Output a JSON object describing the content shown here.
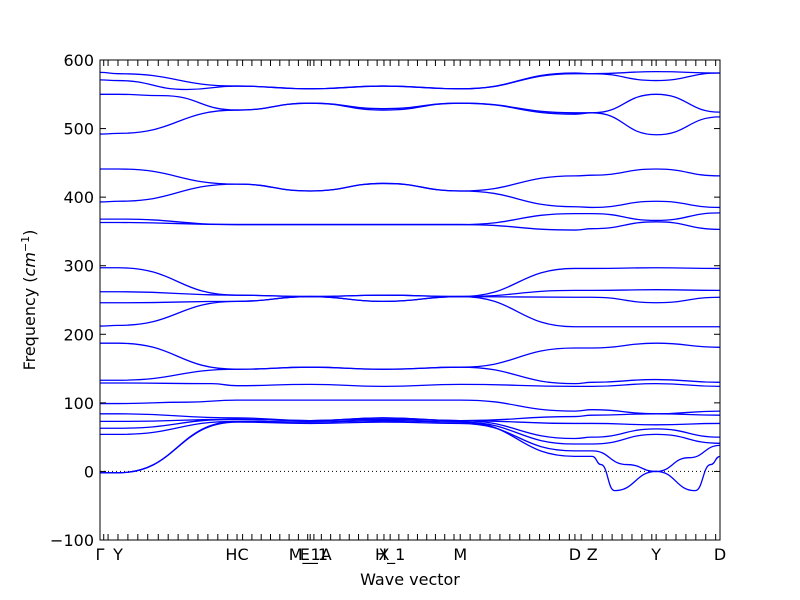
{
  "chart_data": {
    "type": "line",
    "xlabel": "Wave vector",
    "ylabel": "Frequency (cm^{-1})",
    "ylabel_main": "Frequency ",
    "ylabel_unit": "cm",
    "ylabel_exp": "−1",
    "ylim": [
      -100,
      600
    ],
    "yticks": [
      -100,
      0,
      100,
      200,
      300,
      400,
      500,
      600
    ],
    "xlim": [
      0,
      1
    ],
    "grid": false,
    "line_color": "#0000ff",
    "zero_line": {
      "value": 0,
      "style": "dotted",
      "color": "#000000"
    },
    "high_symmetry_points": [
      {
        "label": "Γ",
        "x": 0.0
      },
      {
        "label": "Y",
        "x": 0.029
      },
      {
        "label": "HC",
        "x": 0.221
      },
      {
        "label": "E_1",
        "x": 0.345
      },
      {
        "label": "M_1A",
        "x": 0.339
      },
      {
        "label": "X",
        "x": 0.458
      },
      {
        "label": "H_1",
        "x": 0.468
      },
      {
        "label": "M",
        "x": 0.581
      },
      {
        "label": "D",
        "x": 0.766
      },
      {
        "label": "Z",
        "x": 0.794
      },
      {
        "label": "Y",
        "x": 0.897
      },
      {
        "label": "D",
        "x": 1.0
      }
    ],
    "tick_positions": [
      0.0,
      0.006,
      0.013,
      0.029,
      0.045,
      0.061,
      0.077,
      0.094,
      0.11,
      0.126,
      0.142,
      0.158,
      0.174,
      0.19,
      0.206,
      0.221,
      0.23,
      0.245,
      0.26,
      0.275,
      0.29,
      0.305,
      0.32,
      0.335,
      0.339,
      0.345,
      0.357,
      0.372,
      0.387,
      0.402,
      0.417,
      0.432,
      0.447,
      0.458,
      0.468,
      0.482,
      0.497,
      0.512,
      0.527,
      0.541,
      0.556,
      0.571,
      0.581,
      0.597,
      0.613,
      0.629,
      0.645,
      0.661,
      0.677,
      0.693,
      0.709,
      0.725,
      0.741,
      0.757,
      0.766,
      0.776,
      0.794,
      0.81,
      0.826,
      0.842,
      0.858,
      0.874,
      0.89,
      0.897,
      0.913,
      0.929,
      0.945,
      0.961,
      0.977,
      0.993,
      1.0
    ],
    "series": [
      {
        "x": [
          0,
          0.029,
          0.221,
          0.339,
          0.458,
          0.581,
          0.766,
          0.794,
          0.897,
          1.0
        ],
        "values": [
          582,
          580,
          562,
          558,
          562,
          558,
          581,
          580,
          583,
          581
        ]
      },
      {
        "x": [
          0,
          0.029,
          0.14,
          0.221,
          0.339,
          0.458,
          0.581,
          0.766,
          0.794,
          0.897,
          1.0
        ],
        "values": [
          571,
          570,
          557,
          562,
          558,
          562,
          558,
          580,
          580,
          570,
          581
        ]
      },
      {
        "x": [
          0,
          0.029,
          0.1,
          0.221,
          0.339,
          0.458,
          0.581,
          0.766,
          0.794,
          0.897,
          1.0
        ],
        "values": [
          550,
          550,
          548,
          527,
          537,
          527,
          537,
          523,
          523,
          550,
          524
        ]
      },
      {
        "x": [
          0,
          0.029,
          0.221,
          0.339,
          0.458,
          0.581,
          0.766,
          0.794,
          0.897,
          1.0
        ],
        "values": [
          492,
          493,
          527,
          537,
          529,
          537,
          521,
          523,
          491,
          517
        ]
      },
      {
        "x": [
          0,
          0.029,
          0.221,
          0.339,
          0.458,
          0.581,
          0.766,
          0.794,
          0.897,
          1.0
        ],
        "values": [
          441,
          441,
          419,
          409,
          420,
          409,
          431,
          432,
          441,
          431
        ]
      },
      {
        "x": [
          0,
          0.029,
          0.221,
          0.339,
          0.458,
          0.581,
          0.766,
          0.794,
          0.897,
          1.0
        ],
        "values": [
          393,
          394,
          419,
          409,
          420,
          409,
          386,
          385,
          394,
          385
        ]
      },
      {
        "x": [
          0,
          0.029,
          0.221,
          0.339,
          0.458,
          0.581,
          0.766,
          0.794,
          0.897,
          1.0
        ],
        "values": [
          368,
          368,
          360,
          360,
          360,
          360,
          376,
          376,
          366,
          377
        ]
      },
      {
        "x": [
          0,
          0.029,
          0.221,
          0.339,
          0.458,
          0.581,
          0.766,
          0.794,
          0.897,
          1.0
        ],
        "values": [
          363,
          363,
          360,
          360,
          360,
          360,
          352,
          354,
          364,
          353
        ]
      },
      {
        "x": [
          0,
          0.029,
          0.221,
          0.339,
          0.458,
          0.581,
          0.766,
          0.794,
          0.897,
          1.0
        ],
        "values": [
          297,
          297,
          257,
          255,
          257,
          255,
          296,
          296,
          297,
          296
        ]
      },
      {
        "x": [
          0,
          0.029,
          0.221,
          0.339,
          0.458,
          0.581,
          0.766,
          0.794,
          0.897,
          1.0
        ],
        "values": [
          262,
          262,
          257,
          255,
          257,
          255,
          264,
          264,
          265,
          264
        ]
      },
      {
        "x": [
          0,
          0.029,
          0.221,
          0.339,
          0.458,
          0.581,
          0.766,
          0.794,
          0.897,
          1.0
        ],
        "values": [
          246,
          246,
          248,
          255,
          248,
          255,
          254,
          254,
          246,
          254
        ]
      },
      {
        "x": [
          0,
          0.029,
          0.221,
          0.339,
          0.458,
          0.581,
          0.766,
          0.794,
          0.897,
          1.0
        ],
        "values": [
          212,
          213,
          248,
          255,
          248,
          255,
          211,
          211,
          211,
          211
        ]
      },
      {
        "x": [
          0,
          0.029,
          0.221,
          0.339,
          0.458,
          0.581,
          0.766,
          0.794,
          0.897,
          1.0
        ],
        "values": [
          187,
          187,
          149,
          152,
          149,
          152,
          180,
          180,
          187,
          181
        ]
      },
      {
        "x": [
          0,
          0.029,
          0.221,
          0.339,
          0.458,
          0.581,
          0.766,
          0.794,
          0.897,
          1.0
        ],
        "values": [
          133,
          133,
          149,
          152,
          149,
          152,
          128,
          130,
          134,
          130
        ]
      },
      {
        "x": [
          0,
          0.029,
          0.18,
          0.221,
          0.339,
          0.458,
          0.581,
          0.766,
          0.794,
          0.897,
          1.0
        ],
        "values": [
          129,
          129,
          128,
          125,
          127,
          124,
          127,
          124,
          124,
          128,
          124
        ]
      },
      {
        "x": [
          0,
          0.029,
          0.14,
          0.221,
          0.339,
          0.458,
          0.581,
          0.766,
          0.794,
          0.897,
          1.0
        ],
        "values": [
          99,
          99,
          101,
          104,
          104,
          104,
          104,
          88,
          90,
          84,
          88
        ]
      },
      {
        "x": [
          0,
          0.029,
          0.221,
          0.339,
          0.458,
          0.581,
          0.766,
          0.794,
          0.897,
          1.0
        ],
        "values": [
          84,
          84,
          78,
          74,
          76,
          74,
          80,
          82,
          84,
          82
        ]
      },
      {
        "x": [
          0,
          0.029,
          0.221,
          0.339,
          0.458,
          0.581,
          0.766,
          0.794,
          0.897,
          1.0
        ],
        "values": [
          73,
          73,
          76,
          74,
          78,
          74,
          70,
          70,
          68,
          70
        ]
      },
      {
        "x": [
          0,
          0.029,
          0.221,
          0.339,
          0.458,
          0.581,
          0.766,
          0.794,
          0.897,
          1.0
        ],
        "values": [
          63,
          63,
          76,
          74,
          78,
          74,
          48,
          50,
          62,
          50
        ]
      },
      {
        "x": [
          0,
          0.029,
          0.221,
          0.339,
          0.458,
          0.581,
          0.766,
          0.794,
          0.897,
          1.0
        ],
        "values": [
          54,
          54,
          73,
          72,
          74,
          72,
          40,
          40,
          54,
          41
        ]
      },
      {
        "x": [
          0,
          0.029,
          0.221,
          0.339,
          0.458,
          0.581,
          0.766,
          0.794,
          0.808,
          0.83,
          0.897,
          0.96,
          0.985,
          1.0
        ],
        "values": [
          -2,
          -2,
          73,
          72,
          74,
          72,
          22,
          22,
          10,
          -28,
          0,
          -28,
          10,
          22
        ]
      },
      {
        "x": [
          0,
          0.029,
          0.221,
          0.339,
          0.458,
          0.581,
          0.766,
          0.794,
          0.85,
          0.897,
          0.95,
          1.0
        ],
        "values": [
          -2,
          -2,
          72,
          70,
          72,
          70,
          30,
          30,
          10,
          0,
          20,
          38
        ]
      }
    ]
  }
}
